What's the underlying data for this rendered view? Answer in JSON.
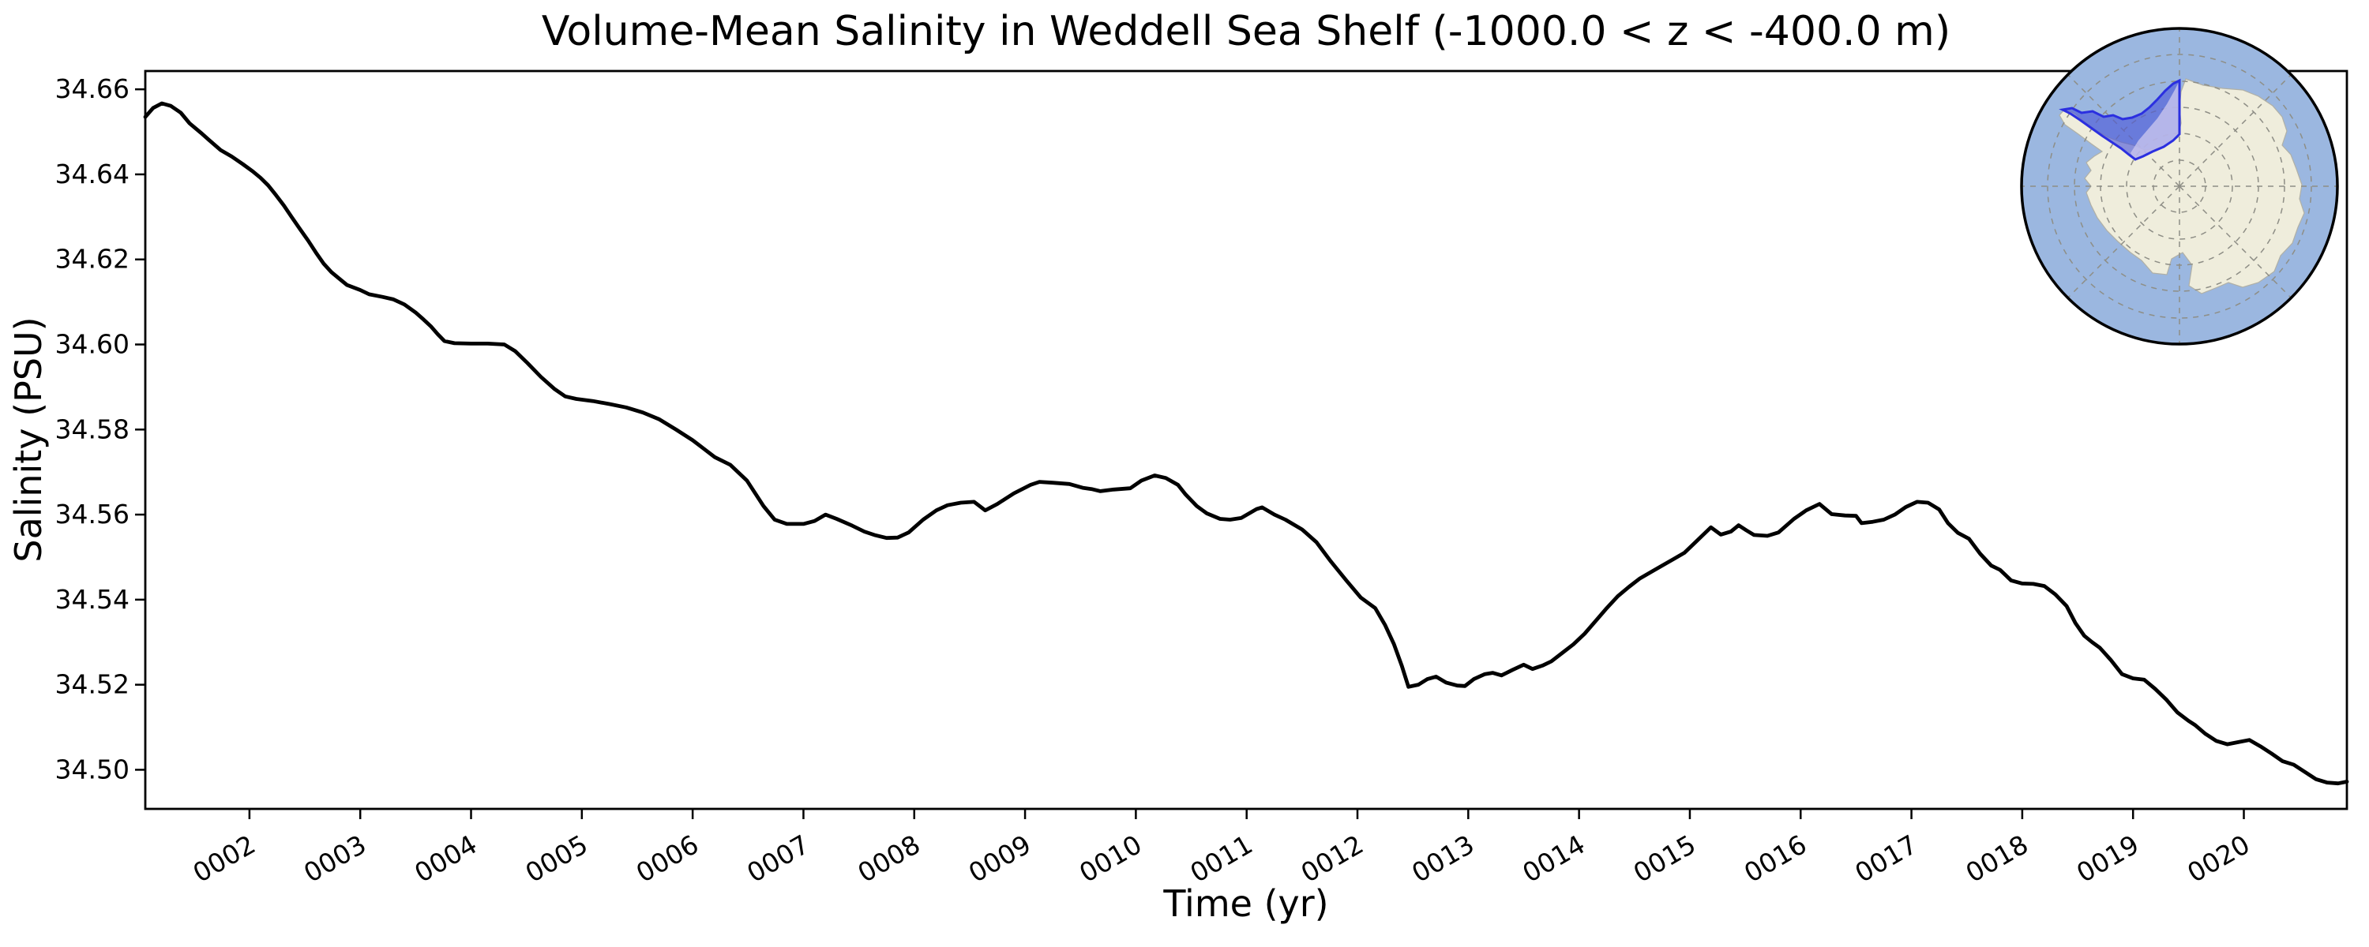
{
  "figure": {
    "background": "#ffffff"
  },
  "chart_data": {
    "type": "line",
    "title": "Volume-Mean Salinity in Weddell Sea Shelf (-1000.0 < z < -400.0 m)",
    "xlabel": "Time (yr)",
    "ylabel": "Salinity (PSU)",
    "xlim": [
      1.06,
      20.93
    ],
    "ylim": [
      34.4908,
      34.6643
    ],
    "grid": false,
    "legend_position": "none",
    "line": {
      "color": "#000000",
      "width": 4.8
    },
    "axis": {
      "spine_color": "#000000",
      "spine_width": 2.8,
      "tick_len": 13,
      "tick_width": 2.5,
      "tick_fontsize": 33,
      "xtick_rotation_deg": -30
    },
    "xtick_years": [
      2,
      3,
      4,
      5,
      6,
      7,
      8,
      9,
      10,
      11,
      12,
      13,
      14,
      15,
      16,
      17,
      18,
      19,
      20
    ],
    "xtick_labels": [
      "0002",
      "0003",
      "0004",
      "0005",
      "0006",
      "0007",
      "0008",
      "0009",
      "0010",
      "0011",
      "0012",
      "0013",
      "0014",
      "0015",
      "0016",
      "0017",
      "0018",
      "0019",
      "0020"
    ],
    "ytick_values": [
      34.5,
      34.52,
      34.54,
      34.56,
      34.58,
      34.6,
      34.62,
      34.64,
      34.66
    ],
    "ytick_labels": [
      "34.50",
      "34.52",
      "34.54",
      "34.56",
      "34.58",
      "34.60",
      "34.62",
      "34.64",
      "34.66"
    ],
    "series": [
      {
        "name": "volume-mean-salinity",
        "x": [
          1.06,
          1.13,
          1.21,
          1.29,
          1.38,
          1.46,
          1.56,
          1.63,
          1.74,
          1.84,
          1.94,
          2.03,
          2.1,
          2.17,
          2.24,
          2.31,
          2.38,
          2.46,
          2.53,
          2.6,
          2.67,
          2.74,
          2.81,
          2.88,
          3.0,
          3.08,
          3.2,
          3.3,
          3.4,
          3.5,
          3.57,
          3.64,
          3.7,
          3.76,
          3.85,
          4.0,
          4.15,
          4.3,
          4.4,
          4.51,
          4.63,
          4.75,
          4.85,
          4.95,
          5.1,
          5.25,
          5.4,
          5.55,
          5.7,
          5.85,
          6.0,
          6.09,
          6.2,
          6.34,
          6.49,
          6.64,
          6.74,
          6.85,
          7.0,
          7.1,
          7.2,
          7.3,
          7.44,
          7.55,
          7.64,
          7.75,
          7.85,
          7.95,
          8.08,
          8.2,
          8.3,
          8.42,
          8.54,
          8.64,
          8.75,
          8.9,
          9.05,
          9.13,
          9.25,
          9.4,
          9.52,
          9.6,
          9.68,
          9.8,
          9.95,
          10.05,
          10.17,
          10.27,
          10.38,
          10.45,
          10.55,
          10.64,
          10.76,
          10.85,
          10.95,
          11.09,
          11.14,
          11.25,
          11.35,
          11.5,
          11.63,
          11.76,
          11.9,
          12.03,
          12.16,
          12.25,
          12.33,
          12.4,
          12.46,
          12.55,
          12.63,
          12.71,
          12.8,
          12.9,
          12.97,
          13.05,
          13.15,
          13.22,
          13.3,
          13.4,
          13.5,
          13.58,
          13.67,
          13.75,
          13.85,
          13.95,
          14.05,
          14.15,
          14.25,
          14.35,
          14.45,
          14.55,
          14.65,
          14.75,
          14.85,
          14.95,
          15.05,
          15.19,
          15.28,
          15.37,
          15.44,
          15.51,
          15.58,
          15.7,
          15.8,
          15.94,
          16.05,
          16.17,
          16.28,
          16.4,
          16.5,
          16.55,
          16.65,
          16.75,
          16.85,
          16.95,
          17.05,
          17.15,
          17.25,
          17.33,
          17.42,
          17.52,
          17.62,
          17.72,
          17.8,
          17.9,
          18.0,
          18.1,
          18.2,
          18.3,
          18.4,
          18.48,
          18.56,
          18.63,
          18.7,
          18.8,
          18.9,
          19.0,
          19.1,
          19.2,
          19.3,
          19.4,
          19.5,
          19.56,
          19.65,
          19.75,
          19.85,
          19.95,
          20.05,
          20.15,
          20.25,
          20.35,
          20.45,
          20.55,
          20.65,
          20.75,
          20.85,
          20.93
        ],
        "y": [
          34.6535,
          34.6556,
          34.6567,
          34.6561,
          34.6545,
          34.652,
          34.6498,
          34.6482,
          34.6457,
          34.6442,
          34.6424,
          34.6407,
          34.6392,
          34.6374,
          34.6351,
          34.6327,
          34.63,
          34.627,
          34.6244,
          34.6216,
          34.619,
          34.617,
          34.6155,
          34.614,
          34.6128,
          34.6118,
          34.6112,
          34.6106,
          34.6094,
          34.6075,
          34.6059,
          34.6042,
          34.6024,
          34.6008,
          34.6003,
          34.6002,
          34.6002,
          34.6,
          34.5984,
          34.5956,
          34.5924,
          34.5896,
          34.5878,
          34.5872,
          34.5867,
          34.586,
          34.5852,
          34.584,
          34.5824,
          34.58,
          34.5775,
          34.5757,
          34.5735,
          34.5717,
          34.568,
          34.562,
          34.5588,
          34.5578,
          34.5578,
          34.5585,
          34.56,
          34.559,
          34.5574,
          34.556,
          34.5552,
          34.5545,
          34.5546,
          34.5558,
          34.5588,
          34.561,
          34.5622,
          34.5628,
          34.563,
          34.561,
          34.5625,
          34.565,
          34.567,
          34.5677,
          34.5675,
          34.5672,
          34.5663,
          34.566,
          34.5655,
          34.5659,
          34.5662,
          34.568,
          34.5692,
          34.5686,
          34.567,
          34.5647,
          34.562,
          34.5603,
          34.559,
          34.5588,
          34.5592,
          34.5613,
          34.5617,
          34.56,
          34.5588,
          34.5565,
          34.5535,
          34.549,
          34.5445,
          34.5405,
          34.538,
          34.534,
          34.5295,
          34.5245,
          34.5195,
          34.52,
          34.5213,
          34.5219,
          34.5205,
          34.5198,
          34.5197,
          34.5213,
          34.5225,
          34.5228,
          34.5222,
          34.5235,
          34.5247,
          34.5237,
          34.5245,
          34.5255,
          34.5275,
          34.5295,
          34.532,
          34.535,
          34.538,
          34.5408,
          34.543,
          34.545,
          34.5465,
          34.548,
          34.5495,
          34.551,
          34.5535,
          34.557,
          34.5553,
          34.556,
          34.5575,
          34.5563,
          34.5552,
          34.555,
          34.5558,
          34.559,
          34.561,
          34.5625,
          34.5601,
          34.5598,
          34.5597,
          34.558,
          34.5583,
          34.5588,
          34.56,
          34.5618,
          34.563,
          34.5628,
          34.5612,
          34.558,
          34.5557,
          34.5543,
          34.5508,
          34.548,
          34.547,
          34.5445,
          34.5438,
          34.5437,
          34.5432,
          34.5412,
          34.5385,
          34.5345,
          34.5315,
          34.53,
          34.5287,
          34.5258,
          34.5225,
          34.5215,
          34.5212,
          34.519,
          34.5165,
          34.5135,
          34.5115,
          34.5105,
          34.5085,
          34.5068,
          34.506,
          34.5065,
          34.507,
          34.5055,
          34.5038,
          34.502,
          34.5012,
          34.4995,
          34.4978,
          34.497,
          34.4968,
          34.4972
        ]
      }
    ]
  },
  "inset_map": {
    "description": "South polar stereographic map of Antarctica with the Weddell Sea shelf region highlighted",
    "colors": {
      "ocean": "#9bb7e0",
      "land": "#efeddc",
      "land_edge": "#b0b0a6",
      "graticule": "#8e8e86",
      "region_fill": "#4a55d8",
      "region_overlay": "#cac6ee",
      "region_border": "#2b2fe0",
      "rim": "#000000"
    }
  }
}
